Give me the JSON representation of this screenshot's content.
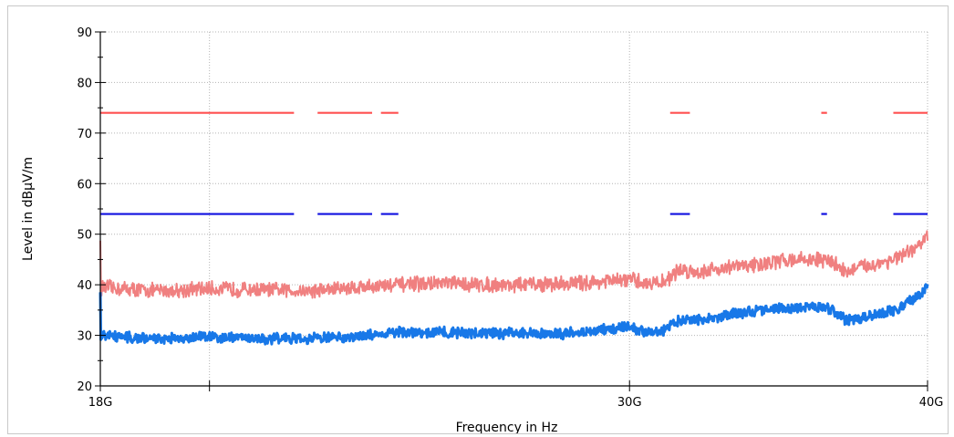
{
  "chart_data": {
    "type": "line",
    "xlabel": "Frequency in Hz",
    "ylabel": "Level in dBµV/m",
    "x_scale": "log",
    "xlim": [
      18,
      40
    ],
    "ylim": [
      20,
      90
    ],
    "grid": true,
    "x_ticks": [
      {
        "value": 18,
        "label": "18G"
      },
      {
        "value": 30,
        "label": "30G"
      },
      {
        "value": 40,
        "label": "40G"
      }
    ],
    "x_minor_ticks": [
      20
    ],
    "y_ticks": [
      {
        "value": 20,
        "label": "20"
      },
      {
        "value": 30,
        "label": "30"
      },
      {
        "value": 40,
        "label": "40"
      },
      {
        "value": 50,
        "label": "50"
      },
      {
        "value": 60,
        "label": "60"
      },
      {
        "value": 70,
        "label": "70"
      },
      {
        "value": 80,
        "label": "80"
      },
      {
        "value": 90,
        "label": "90"
      }
    ],
    "limit_lines": [
      {
        "color": "#ff5050",
        "level": 74,
        "segments": [
          [
            18,
            21.7
          ],
          [
            22.2,
            23.4
          ],
          [
            23.6,
            24.0
          ],
          [
            31.2,
            31.8
          ],
          [
            36.1,
            36.3
          ],
          [
            38.7,
            40
          ]
        ]
      },
      {
        "color": "#1010e0",
        "level": 54,
        "segments": [
          [
            18,
            21.7
          ],
          [
            22.2,
            23.4
          ],
          [
            23.6,
            24.0
          ],
          [
            31.2,
            31.8
          ],
          [
            36.1,
            36.3
          ],
          [
            38.7,
            40
          ]
        ]
      }
    ],
    "series": [
      {
        "color": "#f08080",
        "noise": 1.3,
        "x": [
          18,
          19,
          20,
          21,
          22,
          23,
          24,
          25,
          26,
          27,
          28,
          29,
          30,
          30.5,
          31,
          31.5,
          32,
          33,
          34,
          35,
          36,
          36.5,
          37,
          37.5,
          38,
          39,
          39.5,
          40
        ],
        "y": [
          39.5,
          38.8,
          39.2,
          39.0,
          38.8,
          39.5,
          40.0,
          40.3,
          40.0,
          40.0,
          40.2,
          40.5,
          41.0,
          40.3,
          40.5,
          43.0,
          42.5,
          43.5,
          44.0,
          45.0,
          45.0,
          44.5,
          42.5,
          43.5,
          44.0,
          45.5,
          47.0,
          49.5
        ]
      },
      {
        "color": "#1878e8",
        "noise": 0.9,
        "x": [
          18,
          19,
          20,
          21,
          22,
          23,
          24,
          25,
          26,
          27,
          28,
          29,
          30,
          30.5,
          31,
          31.5,
          32,
          33,
          34,
          35,
          36,
          36.5,
          37,
          37.5,
          38,
          39,
          39.5,
          40
        ],
        "y": [
          30.0,
          29.3,
          29.8,
          29.4,
          29.3,
          29.8,
          30.5,
          30.6,
          30.3,
          30.5,
          30.3,
          30.8,
          31.8,
          30.5,
          31.0,
          33.0,
          33.0,
          34.0,
          35.0,
          35.5,
          35.5,
          35.0,
          33.0,
          33.5,
          34.0,
          35.5,
          37.5,
          39.5
        ]
      }
    ]
  }
}
